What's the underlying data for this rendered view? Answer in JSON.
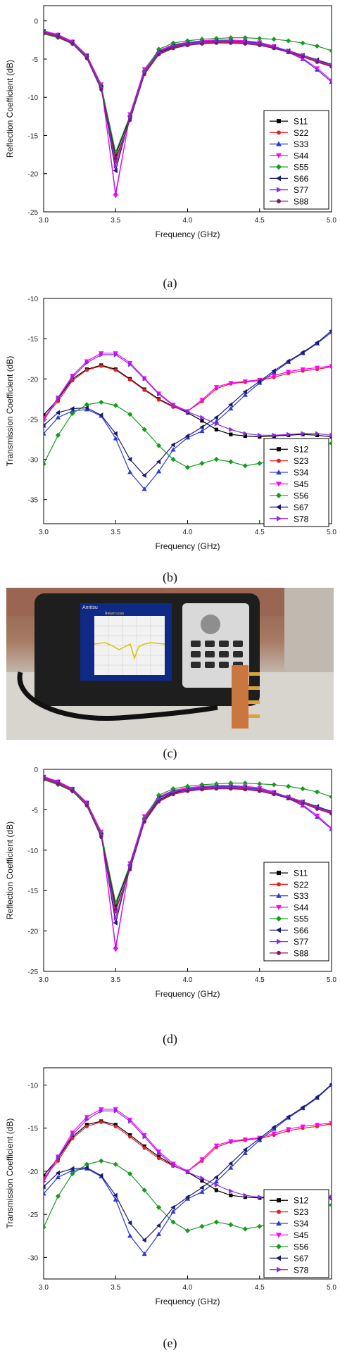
{
  "captions": [
    "(a)",
    "(b)",
    "(c)",
    "(d)",
    "(e)"
  ],
  "photo": {
    "device_brand": "Anritsu",
    "screen_title": "Return Loss"
  },
  "chart_data": [
    {
      "type": "line",
      "xlabel": "Frequency (GHz)",
      "ylabel": "Reflection Coefficient (dB)",
      "xlim": [
        3.0,
        5.0
      ],
      "ylim": [
        -25,
        2
      ],
      "xticks": [
        3.0,
        3.5,
        4.0,
        4.5,
        5.0
      ],
      "yticks": [
        0,
        -5,
        -10,
        -15,
        -20,
        -25
      ],
      "legend_position": "right",
      "x": [
        3.0,
        3.1,
        3.2,
        3.3,
        3.4,
        3.5,
        3.6,
        3.7,
        3.8,
        3.9,
        4.0,
        4.1,
        4.2,
        4.3,
        4.4,
        4.5,
        4.6,
        4.7,
        4.8,
        4.9,
        5.0
      ],
      "series": [
        {
          "name": "S11",
          "color": "#000000",
          "marker": "square",
          "values": [
            -1.4,
            -1.9,
            -2.8,
            -4.7,
            -8.6,
            -17.5,
            -12.6,
            -6.8,
            -4.2,
            -3.4,
            -3.1,
            -2.9,
            -2.8,
            -2.8,
            -2.9,
            -3.1,
            -3.5,
            -4.0,
            -4.6,
            -5.2,
            -5.8
          ]
        },
        {
          "name": "S22",
          "color": "#ee1c25",
          "marker": "circle",
          "values": [
            -1.5,
            -2.0,
            -2.9,
            -4.8,
            -8.8,
            -18.4,
            -12.8,
            -6.9,
            -4.3,
            -3.5,
            -3.1,
            -2.9,
            -2.8,
            -2.8,
            -2.9,
            -3.1,
            -3.5,
            -4.0,
            -4.6,
            -5.3,
            -5.9
          ]
        },
        {
          "name": "S33",
          "color": "#2a38d8",
          "marker": "triangle",
          "values": [
            -1.3,
            -1.8,
            -2.7,
            -4.5,
            -8.4,
            -22.6,
            -12.3,
            -6.4,
            -4.0,
            -3.2,
            -2.9,
            -2.7,
            -2.6,
            -2.6,
            -2.7,
            -2.9,
            -3.4,
            -4.1,
            -5.0,
            -6.4,
            -8.0
          ]
        },
        {
          "name": "S44",
          "color": "#ff00ff",
          "marker": "tri_down",
          "values": [
            -1.3,
            -1.8,
            -2.7,
            -4.5,
            -8.3,
            -22.9,
            -12.2,
            -6.3,
            -3.9,
            -3.1,
            -2.8,
            -2.6,
            -2.5,
            -2.5,
            -2.6,
            -2.8,
            -3.3,
            -4.0,
            -4.9,
            -6.2,
            -7.8
          ]
        },
        {
          "name": "S55",
          "color": "#149b1e",
          "marker": "diamond",
          "values": [
            -1.7,
            -2.2,
            -3.0,
            -4.6,
            -8.5,
            -17.2,
            -12.4,
            -6.6,
            -3.7,
            -2.9,
            -2.6,
            -2.4,
            -2.3,
            -2.2,
            -2.2,
            -2.3,
            -2.4,
            -2.6,
            -2.9,
            -3.3,
            -3.9
          ]
        },
        {
          "name": "S66",
          "color": "#1a1a6e",
          "marker": "tri_left",
          "values": [
            -1.4,
            -1.9,
            -2.8,
            -4.6,
            -8.7,
            -19.6,
            -12.5,
            -6.7,
            -4.1,
            -3.3,
            -3.0,
            -2.8,
            -2.7,
            -2.7,
            -2.8,
            -3.0,
            -3.4,
            -3.9,
            -4.5,
            -5.1,
            -5.7
          ]
        },
        {
          "name": "S77",
          "color": "#8b2be2",
          "marker": "tri_right",
          "values": [
            -1.4,
            -1.9,
            -2.8,
            -4.6,
            -8.7,
            -19.0,
            -12.6,
            -6.7,
            -4.1,
            -3.3,
            -3.0,
            -2.8,
            -2.7,
            -2.7,
            -2.8,
            -3.0,
            -3.4,
            -3.9,
            -4.5,
            -5.2,
            -5.8
          ]
        },
        {
          "name": "S88",
          "color": "#7d1a6e",
          "marker": "circle",
          "values": [
            -1.6,
            -2.1,
            -3.0,
            -4.9,
            -9.0,
            -18.0,
            -13.0,
            -7.0,
            -4.4,
            -3.6,
            -3.2,
            -3.0,
            -2.9,
            -2.9,
            -3.0,
            -3.2,
            -3.6,
            -4.1,
            -4.7,
            -5.4,
            -6.0
          ]
        }
      ]
    },
    {
      "type": "line",
      "xlabel": "Frequency (GHz)",
      "ylabel": "Transmission Coefficient (dB)",
      "xlim": [
        3.0,
        5.0
      ],
      "ylim": [
        -38,
        -10
      ],
      "xticks": [
        3.0,
        3.5,
        4.0,
        4.5,
        5.0
      ],
      "yticks": [
        -10,
        -15,
        -20,
        -25,
        -30,
        -35
      ],
      "legend_position": "bottom-right",
      "x": [
        3.0,
        3.1,
        3.2,
        3.3,
        3.4,
        3.5,
        3.6,
        3.7,
        3.8,
        3.9,
        4.0,
        4.1,
        4.2,
        4.3,
        4.4,
        4.5,
        4.6,
        4.7,
        4.8,
        4.9,
        5.0
      ],
      "series": [
        {
          "name": "S12",
          "color": "#000000",
          "marker": "square",
          "values": [
            -24.5,
            -22.5,
            -20.0,
            -18.8,
            -18.3,
            -18.8,
            -20.0,
            -21.3,
            -22.5,
            -23.4,
            -24.2,
            -25.2,
            -26.3,
            -26.9,
            -27.1,
            -27.2,
            -27.1,
            -27.0,
            -26.9,
            -27.0,
            -27.2
          ]
        },
        {
          "name": "S23",
          "color": "#ee1c25",
          "marker": "circle",
          "values": [
            -24.8,
            -22.8,
            -20.2,
            -18.9,
            -18.4,
            -18.9,
            -20.1,
            -21.4,
            -22.6,
            -23.5,
            -24.0,
            -22.8,
            -21.2,
            -20.6,
            -20.4,
            -20.2,
            -19.8,
            -19.3,
            -19.0,
            -18.8,
            -18.5
          ]
        },
        {
          "name": "S34",
          "color": "#2a38d8",
          "marker": "triangle",
          "values": [
            -26.8,
            -24.8,
            -24.0,
            -23.8,
            -24.6,
            -27.4,
            -31.6,
            -33.7,
            -31.5,
            -28.8,
            -27.3,
            -26.5,
            -25.3,
            -23.7,
            -22.0,
            -20.5,
            -19.2,
            -17.9,
            -16.8,
            -15.6,
            -14.2
          ]
        },
        {
          "name": "S45",
          "color": "#ff00ff",
          "marker": "tri_down",
          "values": [
            -25.0,
            -22.3,
            -19.6,
            -17.8,
            -16.8,
            -16.8,
            -18.0,
            -19.9,
            -21.8,
            -23.2,
            -24.0,
            -22.6,
            -21.0,
            -20.5,
            -20.3,
            -20.1,
            -19.6,
            -19.1,
            -18.8,
            -18.6,
            -18.4
          ]
        },
        {
          "name": "S56",
          "color": "#149b1e",
          "marker": "diamond",
          "values": [
            -30.6,
            -27.0,
            -24.3,
            -23.2,
            -22.9,
            -23.3,
            -24.4,
            -26.3,
            -28.3,
            -30.0,
            -31.0,
            -30.5,
            -30.0,
            -30.3,
            -30.8,
            -30.5,
            -30.0,
            -29.5,
            -29.0,
            -28.5,
            -28.0
          ]
        },
        {
          "name": "S67",
          "color": "#1a1a6e",
          "marker": "tri_left",
          "values": [
            -25.8,
            -24.2,
            -23.7,
            -23.6,
            -24.5,
            -26.8,
            -30.0,
            -32.0,
            -30.3,
            -28.2,
            -27.1,
            -26.0,
            -24.8,
            -23.2,
            -21.6,
            -20.3,
            -19.0,
            -17.8,
            -16.7,
            -15.5,
            -14.0
          ]
        },
        {
          "name": "S78",
          "color": "#8b2be2",
          "marker": "tri_right",
          "values": [
            -25.2,
            -22.4,
            -19.8,
            -18.0,
            -17.0,
            -17.0,
            -18.2,
            -20.0,
            -21.9,
            -23.3,
            -24.1,
            -24.8,
            -25.6,
            -26.3,
            -26.8,
            -27.0,
            -27.0,
            -26.9,
            -26.8,
            -26.8,
            -27.0
          ]
        }
      ]
    },
    {
      "type": "line",
      "xlabel": "Frequency (GHz)",
      "ylabel": "Reflection Coefficient (dB)",
      "xlim": [
        3.0,
        5.0
      ],
      "ylim": [
        -25,
        0
      ],
      "xticks": [
        3.0,
        3.5,
        4.0,
        4.5,
        5.0
      ],
      "yticks": [
        0,
        -5,
        -10,
        -15,
        -20,
        -25
      ],
      "legend_position": "right",
      "x": [
        3.0,
        3.1,
        3.2,
        3.3,
        3.4,
        3.5,
        3.6,
        3.7,
        3.8,
        3.9,
        4.0,
        4.1,
        4.2,
        4.3,
        4.4,
        4.5,
        4.6,
        4.7,
        4.8,
        4.9,
        5.0
      ],
      "series": [
        {
          "name": "S11",
          "color": "#000000",
          "marker": "square",
          "values": [
            -1.0,
            -1.6,
            -2.5,
            -4.3,
            -8.0,
            -16.8,
            -12.0,
            -6.3,
            -3.8,
            -2.9,
            -2.6,
            -2.4,
            -2.3,
            -2.3,
            -2.4,
            -2.6,
            -3.0,
            -3.5,
            -4.1,
            -4.7,
            -5.3
          ]
        },
        {
          "name": "S22",
          "color": "#ee1c25",
          "marker": "circle",
          "values": [
            -1.1,
            -1.7,
            -2.6,
            -4.4,
            -8.2,
            -17.6,
            -12.2,
            -6.4,
            -3.9,
            -3.0,
            -2.6,
            -2.4,
            -2.3,
            -2.3,
            -2.4,
            -2.6,
            -3.0,
            -3.5,
            -4.1,
            -4.8,
            -5.4
          ]
        },
        {
          "name": "S33",
          "color": "#2a38d8",
          "marker": "triangle",
          "values": [
            -0.9,
            -1.5,
            -2.4,
            -4.1,
            -7.8,
            -22.0,
            -11.7,
            -5.9,
            -3.5,
            -2.7,
            -2.4,
            -2.2,
            -2.1,
            -2.1,
            -2.2,
            -2.4,
            -2.9,
            -3.6,
            -4.5,
            -5.9,
            -7.4
          ]
        },
        {
          "name": "S44",
          "color": "#ff00ff",
          "marker": "tri_down",
          "values": [
            -0.9,
            -1.5,
            -2.4,
            -4.1,
            -7.7,
            -22.3,
            -11.6,
            -5.8,
            -3.4,
            -2.6,
            -2.3,
            -2.1,
            -2.0,
            -2.0,
            -2.1,
            -2.3,
            -2.8,
            -3.5,
            -4.4,
            -5.7,
            -7.3
          ]
        },
        {
          "name": "S55",
          "color": "#149b1e",
          "marker": "diamond",
          "values": [
            -1.3,
            -1.9,
            -2.7,
            -4.2,
            -7.9,
            -16.5,
            -11.8,
            -6.1,
            -3.2,
            -2.4,
            -2.1,
            -1.9,
            -1.8,
            -1.7,
            -1.7,
            -1.8,
            -1.9,
            -2.1,
            -2.4,
            -2.8,
            -3.4
          ]
        },
        {
          "name": "S66",
          "color": "#1a1a6e",
          "marker": "tri_left",
          "values": [
            -1.0,
            -1.6,
            -2.5,
            -4.2,
            -8.1,
            -19.0,
            -11.9,
            -6.2,
            -3.6,
            -2.8,
            -2.5,
            -2.3,
            -2.2,
            -2.2,
            -2.3,
            -2.5,
            -2.9,
            -3.4,
            -4.0,
            -4.6,
            -5.2
          ]
        },
        {
          "name": "S77",
          "color": "#8b2be2",
          "marker": "tri_right",
          "values": [
            -1.0,
            -1.6,
            -2.5,
            -4.2,
            -8.1,
            -18.4,
            -12.0,
            -6.2,
            -3.6,
            -2.8,
            -2.5,
            -2.3,
            -2.2,
            -2.2,
            -2.3,
            -2.5,
            -2.9,
            -3.4,
            -4.0,
            -4.7,
            -5.3
          ]
        },
        {
          "name": "S88",
          "color": "#7d1a6e",
          "marker": "circle",
          "values": [
            -1.2,
            -1.8,
            -2.7,
            -4.5,
            -8.4,
            -17.3,
            -12.4,
            -6.5,
            -4.0,
            -3.1,
            -2.7,
            -2.5,
            -2.4,
            -2.4,
            -2.5,
            -2.7,
            -3.1,
            -3.6,
            -4.2,
            -4.9,
            -5.5
          ]
        }
      ]
    },
    {
      "type": "line",
      "xlabel": "Frequency (GHz)",
      "ylabel": "Transmission Coefficient (dB)",
      "xlim": [
        3.0,
        5.0
      ],
      "ylim": [
        -32.5,
        -8
      ],
      "xticks": [
        3.0,
        3.5,
        4.0,
        4.5,
        5.0
      ],
      "yticks": [
        -10,
        -15,
        -20,
        -25,
        -30
      ],
      "legend_position": "bottom-right",
      "x": [
        3.0,
        3.1,
        3.2,
        3.3,
        3.4,
        3.5,
        3.6,
        3.7,
        3.8,
        3.9,
        4.0,
        4.1,
        4.2,
        4.3,
        4.4,
        4.5,
        4.6,
        4.7,
        4.8,
        4.9,
        5.0
      ],
      "series": [
        {
          "name": "S12",
          "color": "#000000",
          "marker": "square",
          "values": [
            -20.5,
            -18.5,
            -16.0,
            -14.6,
            -14.2,
            -14.6,
            -15.8,
            -17.1,
            -18.3,
            -19.3,
            -20.1,
            -21.1,
            -22.2,
            -22.8,
            -23.0,
            -23.1,
            -23.0,
            -22.9,
            -22.8,
            -22.9,
            -23.1
          ]
        },
        {
          "name": "S23",
          "color": "#ee1c25",
          "marker": "circle",
          "values": [
            -20.8,
            -18.8,
            -16.2,
            -14.8,
            -14.3,
            -14.8,
            -16.0,
            -17.3,
            -18.5,
            -19.4,
            -20.0,
            -18.8,
            -17.2,
            -16.6,
            -16.4,
            -16.2,
            -15.8,
            -15.3,
            -15.0,
            -14.8,
            -14.5
          ]
        },
        {
          "name": "S34",
          "color": "#2a38d8",
          "marker": "triangle",
          "values": [
            -22.6,
            -20.7,
            -19.9,
            -19.7,
            -20.6,
            -23.3,
            -27.5,
            -29.6,
            -27.3,
            -24.7,
            -23.2,
            -22.4,
            -21.2,
            -19.6,
            -17.9,
            -16.4,
            -15.1,
            -13.8,
            -12.7,
            -11.5,
            -10.0
          ]
        },
        {
          "name": "S45",
          "color": "#ff00ff",
          "marker": "tri_down",
          "values": [
            -21.0,
            -18.3,
            -15.5,
            -13.7,
            -12.8,
            -12.8,
            -14.0,
            -15.8,
            -17.7,
            -19.1,
            -20.0,
            -18.6,
            -17.0,
            -16.5,
            -16.3,
            -16.1,
            -15.6,
            -15.1,
            -14.8,
            -14.6,
            -14.4
          ]
        },
        {
          "name": "S56",
          "color": "#149b1e",
          "marker": "diamond",
          "values": [
            -26.5,
            -22.9,
            -20.3,
            -19.2,
            -18.8,
            -19.2,
            -20.3,
            -22.2,
            -24.2,
            -25.9,
            -26.9,
            -26.4,
            -25.9,
            -26.2,
            -26.7,
            -26.4,
            -25.9,
            -25.4,
            -24.9,
            -24.4,
            -23.9
          ]
        },
        {
          "name": "S67",
          "color": "#1a1a6e",
          "marker": "tri_left",
          "values": [
            -21.8,
            -20.2,
            -19.7,
            -19.6,
            -20.5,
            -22.8,
            -26.0,
            -28.0,
            -26.3,
            -24.2,
            -23.0,
            -21.9,
            -20.7,
            -19.1,
            -17.5,
            -16.2,
            -14.9,
            -13.7,
            -12.6,
            -11.4,
            -9.9
          ]
        },
        {
          "name": "S78",
          "color": "#8b2be2",
          "marker": "tri_right",
          "values": [
            -21.2,
            -18.4,
            -15.8,
            -14.0,
            -13.0,
            -13.0,
            -14.2,
            -16.0,
            -17.9,
            -19.3,
            -20.1,
            -20.8,
            -21.6,
            -22.3,
            -22.8,
            -23.0,
            -23.0,
            -22.9,
            -22.8,
            -22.8,
            -23.0
          ]
        }
      ]
    }
  ]
}
